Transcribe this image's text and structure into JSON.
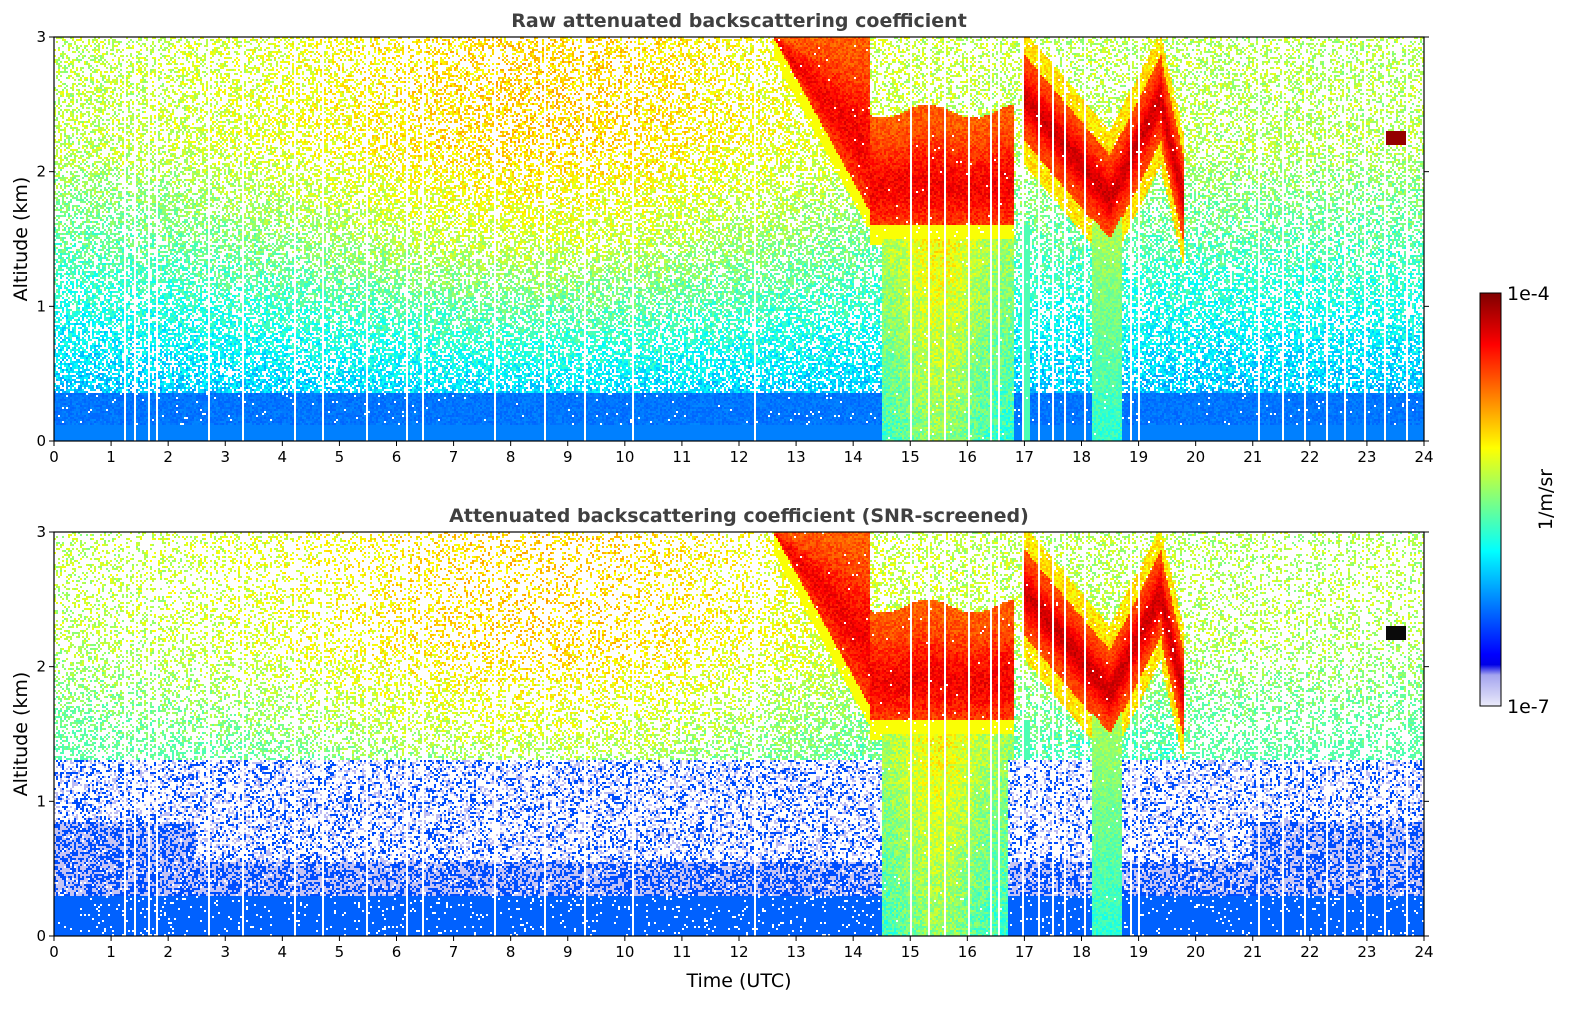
{
  "chart_data": [
    {
      "type": "heatmap",
      "title": "Raw attenuated backscattering coefficient",
      "xlabel": "",
      "ylabel": "Altitude (km)",
      "xlim": [
        0,
        24
      ],
      "ylim": [
        0,
        3
      ],
      "xticks": [
        0,
        1,
        2,
        3,
        4,
        5,
        6,
        7,
        8,
        9,
        10,
        11,
        12,
        13,
        14,
        15,
        16,
        17,
        18,
        19,
        20,
        21,
        22,
        23,
        24
      ],
      "yticks": [
        0,
        1,
        2,
        3
      ],
      "screened": false,
      "features": [
        {
          "kind": "aerosol_layer",
          "time_start": 12.6,
          "time_end": 16.7,
          "top_km": 3.0,
          "base_km": 1.6,
          "value": "orange-red"
        },
        {
          "kind": "aerosol_layer",
          "time_start": 17.0,
          "time_end": 19.6,
          "top_km": 2.8,
          "base_km": 1.6,
          "value": "red"
        },
        {
          "kind": "small_feature",
          "time": 23.5,
          "altitude_km": 2.25,
          "value": "dark red"
        }
      ]
    },
    {
      "type": "heatmap",
      "title": "Attenuated backscattering coefficient (SNR-screened)",
      "xlabel": "Time (UTC)",
      "ylabel": "Altitude (km)",
      "xlim": [
        0,
        24
      ],
      "ylim": [
        0,
        3
      ],
      "xticks": [
        0,
        1,
        2,
        3,
        4,
        5,
        6,
        7,
        8,
        9,
        10,
        11,
        12,
        13,
        14,
        15,
        16,
        17,
        18,
        19,
        20,
        21,
        22,
        23,
        24
      ],
      "yticks": [
        0,
        1,
        2,
        3
      ],
      "screened": true,
      "features": [
        {
          "kind": "aerosol_layer",
          "time_start": 12.6,
          "time_end": 16.7,
          "top_km": 3.0,
          "base_km": 1.6,
          "value": "orange-red"
        },
        {
          "kind": "aerosol_layer",
          "time_start": 17.0,
          "time_end": 19.6,
          "top_km": 2.8,
          "base_km": 1.6,
          "value": "red"
        },
        {
          "kind": "small_feature",
          "time": 23.5,
          "altitude_km": 2.25,
          "value": "black"
        }
      ]
    }
  ],
  "colorbar": {
    "label": "1/m/sr",
    "max_label": "1e-4",
    "min_label": "1e-7",
    "scale": "log",
    "colormap": "jet"
  },
  "colors": {
    "axis": "#000000",
    "title": "#404040",
    "missing": "#ffffff"
  }
}
